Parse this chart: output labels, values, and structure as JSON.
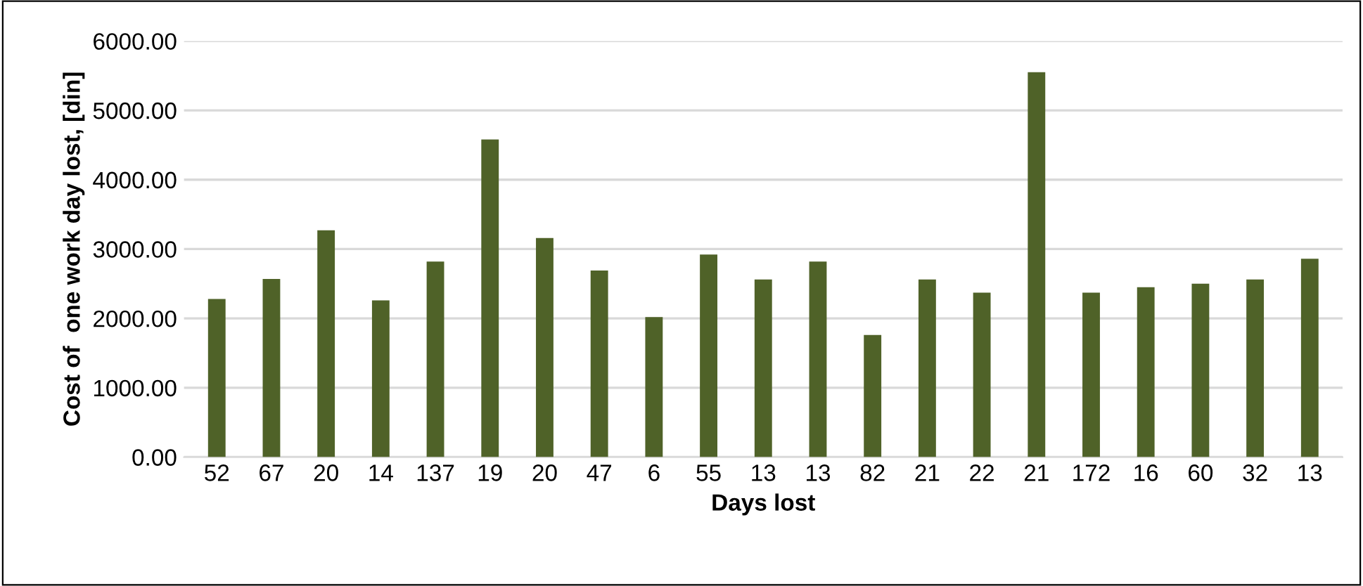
{
  "chart_data": {
    "type": "bar",
    "xlabel": "Days lost",
    "ylabel": "Cost of  one work day lost, [din]",
    "categories": [
      "52",
      "67",
      "20",
      "14",
      "137",
      "19",
      "20",
      "47",
      "6",
      "55",
      "13",
      "13",
      "82",
      "21",
      "22",
      "21",
      "172",
      "16",
      "60",
      "32",
      "13"
    ],
    "values": [
      2280,
      2570,
      3270,
      2260,
      2820,
      4580,
      3160,
      2690,
      2020,
      2920,
      2560,
      2820,
      1760,
      2560,
      2370,
      5550,
      2370,
      2450,
      2500,
      2560,
      2860
    ],
    "color": "#4f6228",
    "ylim": [
      0,
      6000
    ],
    "yticks": [
      {
        "value": 0,
        "label": "0.00"
      },
      {
        "value": 1000,
        "label": "1000.00"
      },
      {
        "value": 2000,
        "label": "2000.00"
      },
      {
        "value": 3000,
        "label": "3000.00"
      },
      {
        "value": 4000,
        "label": "4000.00"
      },
      {
        "value": 5000,
        "label": "5000.00"
      },
      {
        "value": 6000,
        "label": "6000.00"
      }
    ],
    "grid": "y",
    "legend": false
  }
}
